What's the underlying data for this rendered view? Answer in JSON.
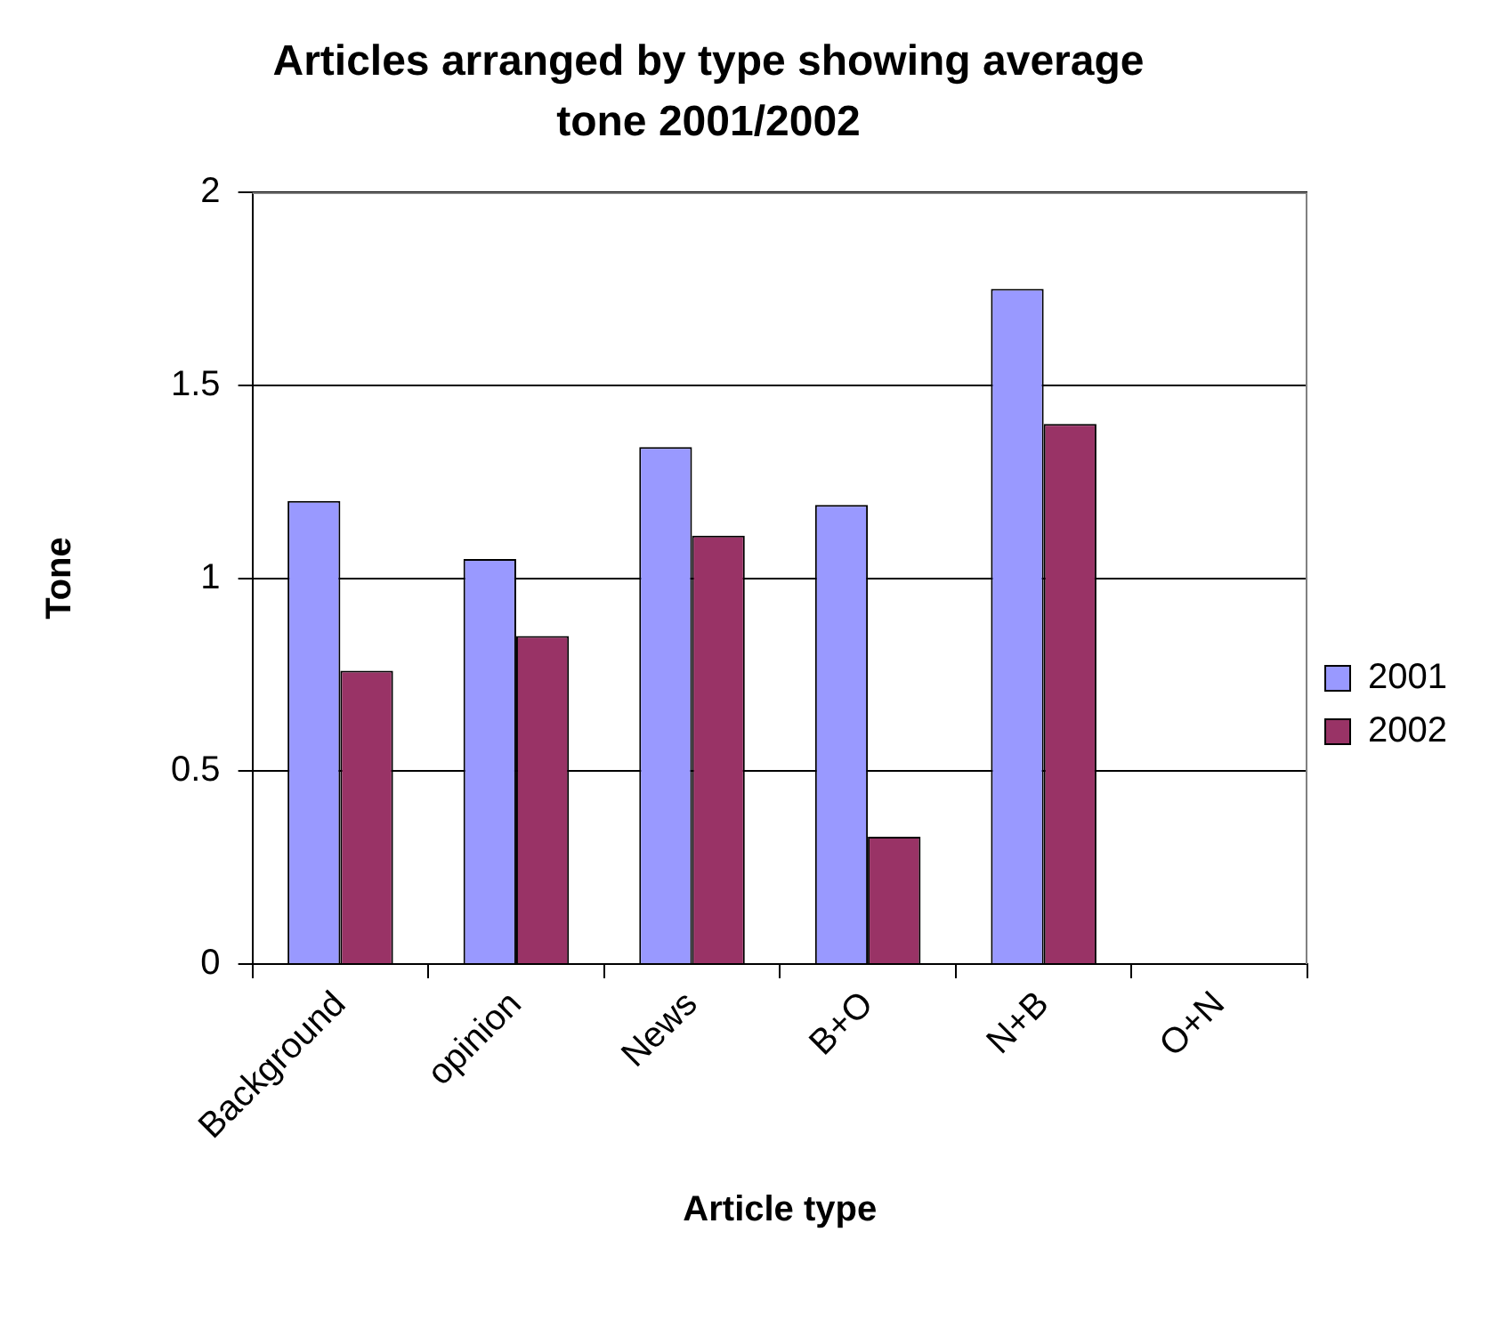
{
  "chart_data": {
    "type": "bar",
    "title": "Articles arranged by type showing average tone 2001/2002",
    "xlabel": "Article type",
    "ylabel": "Tone",
    "categories": [
      "Background",
      "opinion",
      "News",
      "B+O",
      "N+B",
      "O+N"
    ],
    "series": [
      {
        "name": "2001",
        "color": "#9999ff",
        "values": [
          1.2,
          1.05,
          1.34,
          1.19,
          1.75,
          null
        ]
      },
      {
        "name": "2002",
        "color": "#993366",
        "values": [
          0.76,
          0.85,
          1.11,
          0.33,
          1.4,
          null
        ]
      }
    ],
    "ylim": [
      0,
      2
    ],
    "yticks": [
      0,
      0.5,
      1,
      1.5,
      2
    ],
    "grid": "y",
    "legend": "right"
  }
}
